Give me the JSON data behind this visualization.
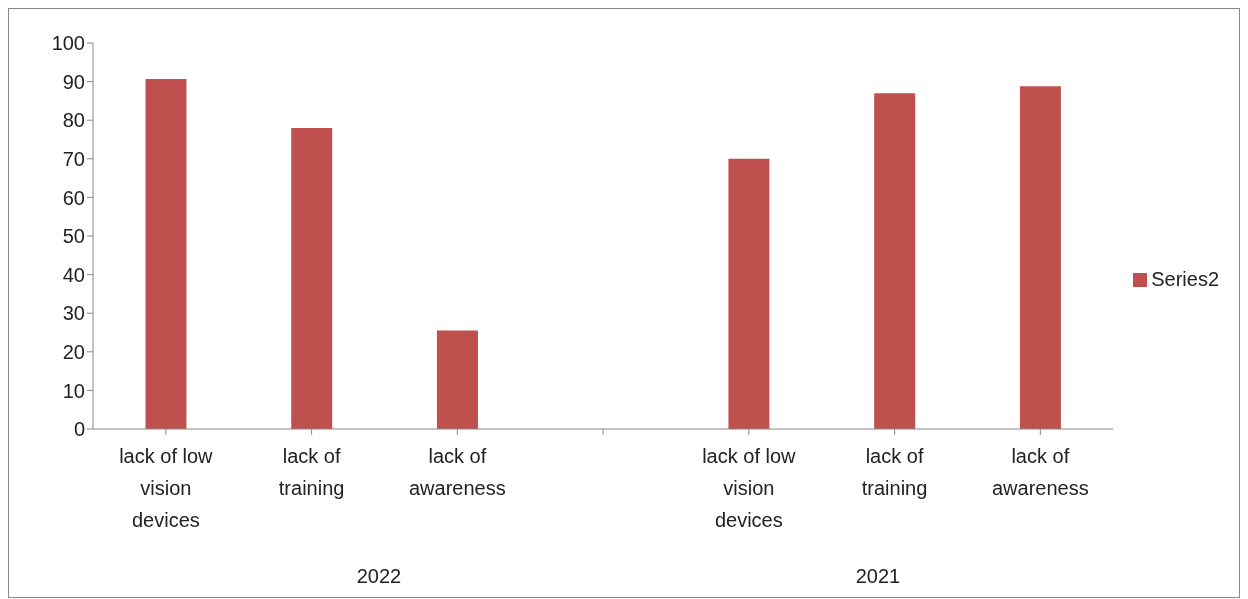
{
  "chart_data": {
    "type": "bar",
    "categories": [
      "lack of low vision devices",
      "lack of training",
      "lack of awareness",
      null,
      "lack of low vision devices",
      "lack of training",
      "lack of awareness"
    ],
    "series": [
      {
        "name": "Series2",
        "color": "#c0504d",
        "values": [
          90.7,
          78,
          25.5,
          null,
          70,
          87,
          88.8
        ]
      }
    ],
    "ylim": [
      0,
      100
    ],
    "yticks": [
      0,
      10,
      20,
      30,
      40,
      50,
      60,
      70,
      80,
      90,
      100
    ],
    "grid": false,
    "legend": "right",
    "annotations": [
      "2022",
      "2021"
    ]
  }
}
